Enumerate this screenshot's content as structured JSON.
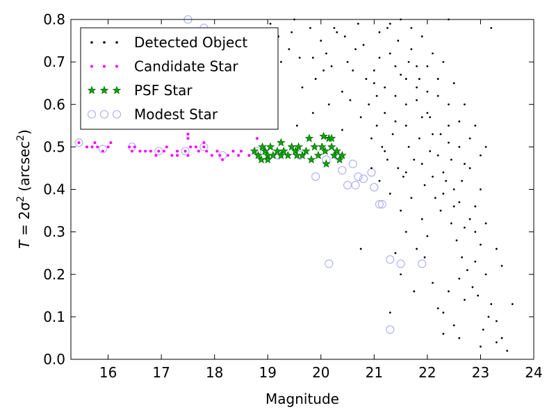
{
  "chart_data": {
    "type": "scatter",
    "title": "",
    "xlabel": "Magnitude",
    "ylabel_prefix": "T = 2σ",
    "ylabel_units": "(arcsec",
    "xlim": [
      15.3,
      24
    ],
    "ylim": [
      0.0,
      0.8
    ],
    "xticks": [
      "16",
      "17",
      "18",
      "19",
      "20",
      "21",
      "22",
      "23",
      "24"
    ],
    "yticks": [
      "0.0",
      "0.1",
      "0.2",
      "0.3",
      "0.4",
      "0.5",
      "0.6",
      "0.7",
      "0.8"
    ],
    "grid": false,
    "legend_position": "top-left",
    "series": [
      {
        "name": "Detected Object",
        "marker": "dot",
        "color": "#000000",
        "points": [
          [
            19.05,
            0.79
          ],
          [
            19.2,
            0.76
          ],
          [
            19.4,
            0.73
          ],
          [
            19.5,
            0.8
          ],
          [
            19.6,
            0.71
          ],
          [
            19.8,
            0.78
          ],
          [
            19.9,
            0.66
          ],
          [
            20.0,
            0.75
          ],
          [
            20.1,
            0.72
          ],
          [
            20.2,
            0.69
          ],
          [
            20.3,
            0.77
          ],
          [
            20.4,
            0.63
          ],
          [
            20.5,
            0.7
          ],
          [
            20.6,
            0.68
          ],
          [
            20.7,
            0.79
          ],
          [
            20.8,
            0.74
          ],
          [
            20.9,
            0.6
          ],
          [
            21.0,
            0.65
          ],
          [
            21.1,
            0.71
          ],
          [
            21.2,
            0.58
          ],
          [
            21.3,
            0.79
          ],
          [
            21.4,
            0.62
          ],
          [
            21.5,
            0.67
          ],
          [
            21.6,
            0.55
          ],
          [
            21.7,
            0.73
          ],
          [
            21.8,
            0.61
          ],
          [
            21.9,
            0.57
          ],
          [
            22.0,
            0.69
          ],
          [
            22.1,
            0.53
          ],
          [
            22.2,
            0.48
          ],
          [
            22.3,
            0.44
          ],
          [
            22.4,
            0.51
          ],
          [
            22.5,
            0.4
          ],
          [
            22.6,
            0.37
          ],
          [
            22.7,
            0.46
          ],
          [
            22.8,
            0.33
          ],
          [
            22.9,
            0.3
          ],
          [
            23.0,
            0.27
          ],
          [
            23.1,
            0.2
          ],
          [
            23.2,
            0.13
          ],
          [
            23.3,
            0.09
          ],
          [
            23.4,
            0.05
          ],
          [
            23.5,
            0.02
          ],
          [
            23.6,
            0.13
          ],
          [
            23.2,
            0.78
          ],
          [
            22.4,
            0.8
          ],
          [
            19.55,
            0.55
          ],
          [
            19.85,
            0.58
          ],
          [
            20.15,
            0.6
          ],
          [
            20.4,
            0.54
          ],
          [
            20.55,
            0.61
          ],
          [
            20.75,
            0.57
          ],
          [
            20.95,
            0.52
          ],
          [
            21.05,
            0.55
          ],
          [
            21.15,
            0.5
          ],
          [
            21.25,
            0.47
          ],
          [
            21.35,
            0.53
          ],
          [
            21.45,
            0.45
          ],
          [
            21.55,
            0.43
          ],
          [
            21.65,
            0.5
          ],
          [
            21.75,
            0.47
          ],
          [
            21.85,
            0.52
          ],
          [
            21.95,
            0.41
          ],
          [
            22.05,
            0.49
          ],
          [
            22.15,
            0.38
          ],
          [
            22.25,
            0.35
          ],
          [
            22.35,
            0.42
          ],
          [
            22.45,
            0.32
          ],
          [
            22.55,
            0.28
          ],
          [
            22.65,
            0.24
          ],
          [
            22.75,
            0.21
          ],
          [
            22.85,
            0.17
          ],
          [
            22.95,
            0.15
          ],
          [
            23.05,
            0.07
          ],
          [
            23.15,
            0.1
          ],
          [
            22.6,
            0.05
          ],
          [
            22.1,
            0.18
          ],
          [
            22.3,
            0.11
          ],
          [
            22.5,
            0.08
          ],
          [
            22.7,
            0.14
          ],
          [
            23.0,
            0.03
          ],
          [
            23.3,
            0.04
          ],
          [
            21.7,
            0.38
          ],
          [
            21.9,
            0.33
          ],
          [
            22.0,
            0.29
          ],
          [
            21.8,
            0.26
          ],
          [
            21.6,
            0.3
          ],
          [
            21.5,
            0.35
          ],
          [
            21.3,
            0.39
          ],
          [
            21.1,
            0.42
          ],
          [
            20.95,
            0.45
          ],
          [
            21.2,
            0.49
          ],
          [
            21.4,
            0.56
          ],
          [
            21.6,
            0.6
          ],
          [
            21.8,
            0.64
          ],
          [
            22.0,
            0.58
          ],
          [
            22.2,
            0.62
          ],
          [
            22.4,
            0.55
          ],
          [
            22.6,
            0.5
          ],
          [
            22.8,
            0.45
          ],
          [
            23.0,
            0.4
          ],
          [
            22.9,
            0.36
          ],
          [
            23.1,
            0.32
          ],
          [
            23.3,
            0.26
          ],
          [
            23.4,
            0.22
          ],
          [
            22.65,
            0.42
          ],
          [
            22.45,
            0.47
          ],
          [
            22.25,
            0.53
          ],
          [
            22.05,
            0.57
          ],
          [
            21.85,
            0.66
          ],
          [
            21.65,
            0.7
          ],
          [
            21.45,
            0.75
          ],
          [
            21.25,
            0.78
          ],
          [
            21.05,
            0.62
          ],
          [
            20.85,
            0.66
          ],
          [
            20.65,
            0.73
          ],
          [
            20.45,
            0.76
          ],
          [
            20.25,
            0.78
          ],
          [
            20.05,
            0.68
          ],
          [
            19.85,
            0.71
          ],
          [
            19.65,
            0.64
          ],
          [
            19.45,
            0.77
          ],
          [
            19.25,
            0.7
          ],
          [
            20.75,
            0.26
          ],
          [
            21.4,
            0.25
          ],
          [
            21.5,
            0.2
          ],
          [
            21.3,
            0.11
          ],
          [
            22.3,
            0.06
          ],
          [
            21.95,
            0.24
          ],
          [
            21.75,
            0.16
          ],
          [
            21.6,
            0.44
          ],
          [
            21.9,
            0.46
          ],
          [
            22.1,
            0.43
          ],
          [
            22.3,
            0.39
          ],
          [
            22.5,
            0.36
          ],
          [
            22.7,
            0.31
          ],
          [
            22.9,
            0.23
          ],
          [
            22.6,
            0.19
          ],
          [
            22.4,
            0.16
          ],
          [
            22.2,
            0.12
          ],
          [
            21.0,
            0.68
          ],
          [
            21.2,
            0.64
          ],
          [
            21.4,
            0.69
          ],
          [
            21.6,
            0.66
          ],
          [
            21.8,
            0.69
          ],
          [
            22.0,
            0.63
          ],
          [
            22.2,
            0.66
          ],
          [
            22.4,
            0.6
          ],
          [
            22.6,
            0.56
          ],
          [
            22.8,
            0.52
          ],
          [
            23.0,
            0.48
          ],
          [
            23.1,
            0.5
          ],
          [
            21.1,
            0.77
          ],
          [
            21.3,
            0.72
          ],
          [
            21.5,
            0.8
          ],
          [
            21.7,
            0.78
          ],
          [
            21.9,
            0.76
          ],
          [
            22.1,
            0.72
          ],
          [
            22.3,
            0.7
          ],
          [
            22.5,
            0.65
          ],
          [
            22.7,
            0.6
          ],
          [
            22.9,
            0.55
          ]
        ]
      },
      {
        "name": "Candidate Star",
        "marker": "magenta-dot",
        "color": "#ff00ff",
        "points": [
          [
            15.45,
            0.51
          ],
          [
            15.6,
            0.5
          ],
          [
            15.7,
            0.5
          ],
          [
            15.75,
            0.51
          ],
          [
            15.8,
            0.5
          ],
          [
            15.9,
            0.49
          ],
          [
            16.0,
            0.5
          ],
          [
            16.05,
            0.51
          ],
          [
            16.4,
            0.5
          ],
          [
            16.45,
            0.49
          ],
          [
            16.5,
            0.5
          ],
          [
            16.6,
            0.49
          ],
          [
            16.7,
            0.49
          ],
          [
            16.8,
            0.49
          ],
          [
            16.9,
            0.48
          ],
          [
            16.95,
            0.49
          ],
          [
            17.05,
            0.49
          ],
          [
            17.1,
            0.5
          ],
          [
            17.2,
            0.48
          ],
          [
            17.3,
            0.49
          ],
          [
            17.45,
            0.49
          ],
          [
            17.5,
            0.48
          ],
          [
            17.55,
            0.5
          ],
          [
            17.65,
            0.5
          ],
          [
            17.7,
            0.49
          ],
          [
            17.8,
            0.51
          ],
          [
            17.85,
            0.49
          ],
          [
            17.95,
            0.48
          ],
          [
            18.05,
            0.49
          ],
          [
            18.1,
            0.48
          ],
          [
            18.15,
            0.47
          ],
          [
            18.25,
            0.48
          ],
          [
            18.35,
            0.49
          ],
          [
            18.45,
            0.48
          ],
          [
            18.5,
            0.49
          ],
          [
            18.65,
            0.48
          ],
          [
            18.75,
            0.49
          ],
          [
            18.8,
            0.52
          ],
          [
            17.5,
            0.52
          ],
          [
            17.5,
            0.53
          ],
          [
            17.8,
            0.5
          ],
          [
            17.3,
            0.48
          ]
        ]
      },
      {
        "name": "PSF Star",
        "marker": "star",
        "color": "#00aa00",
        "points": [
          [
            18.75,
            0.49
          ],
          [
            18.82,
            0.48
          ],
          [
            18.88,
            0.47
          ],
          [
            18.95,
            0.49
          ],
          [
            19.0,
            0.48
          ],
          [
            19.05,
            0.5
          ],
          [
            19.1,
            0.48
          ],
          [
            19.18,
            0.49
          ],
          [
            19.25,
            0.48
          ],
          [
            19.3,
            0.49
          ],
          [
            19.38,
            0.48
          ],
          [
            19.45,
            0.5
          ],
          [
            19.52,
            0.49
          ],
          [
            19.58,
            0.5
          ],
          [
            19.65,
            0.48
          ],
          [
            19.72,
            0.49
          ],
          [
            19.78,
            0.52
          ],
          [
            19.82,
            0.47
          ],
          [
            19.88,
            0.5
          ],
          [
            19.95,
            0.48
          ],
          [
            20.02,
            0.5
          ],
          [
            20.08,
            0.49
          ],
          [
            20.15,
            0.52
          ],
          [
            20.2,
            0.5
          ],
          [
            20.25,
            0.48
          ],
          [
            20.3,
            0.49
          ],
          [
            20.35,
            0.47
          ],
          [
            20.1,
            0.46
          ],
          [
            19.55,
            0.48
          ],
          [
            19.25,
            0.51
          ],
          [
            19.0,
            0.47
          ],
          [
            18.9,
            0.5
          ],
          [
            20.05,
            0.525
          ],
          [
            20.2,
            0.52
          ],
          [
            20.4,
            0.48
          ]
        ]
      },
      {
        "name": "Modest Star",
        "marker": "circle",
        "color": "#aaaaff",
        "points": [
          [
            15.45,
            0.51
          ],
          [
            15.9,
            0.495
          ],
          [
            16.45,
            0.5
          ],
          [
            16.95,
            0.49
          ],
          [
            17.45,
            0.49
          ],
          [
            17.8,
            0.5
          ],
          [
            18.15,
            0.48
          ],
          [
            18.8,
            0.49
          ],
          [
            19.2,
            0.48
          ],
          [
            19.6,
            0.48
          ],
          [
            19.9,
            0.43
          ],
          [
            20.1,
            0.47
          ],
          [
            20.3,
            0.48
          ],
          [
            20.4,
            0.445
          ],
          [
            20.5,
            0.41
          ],
          [
            20.6,
            0.46
          ],
          [
            20.65,
            0.41
          ],
          [
            20.7,
            0.43
          ],
          [
            20.8,
            0.425
          ],
          [
            20.95,
            0.44
          ],
          [
            21.0,
            0.405
          ],
          [
            21.1,
            0.365
          ],
          [
            21.15,
            0.365
          ],
          [
            20.15,
            0.225
          ],
          [
            21.3,
            0.235
          ],
          [
            21.5,
            0.225
          ],
          [
            21.9,
            0.225
          ],
          [
            21.3,
            0.07
          ],
          [
            17.5,
            0.8
          ],
          [
            17.8,
            0.78
          ]
        ]
      }
    ]
  }
}
